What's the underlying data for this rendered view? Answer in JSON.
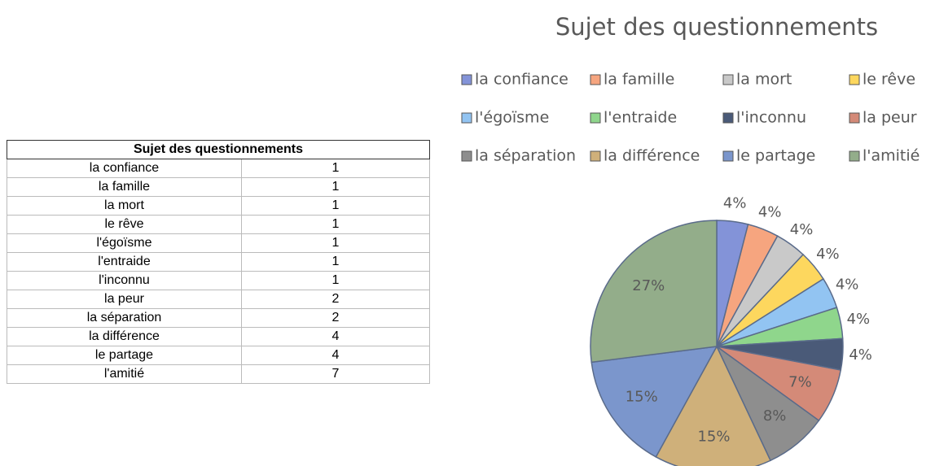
{
  "table": {
    "title": "Sujet des questionnements",
    "rows": [
      [
        "la confiance",
        "1"
      ],
      [
        "la famille",
        "1"
      ],
      [
        "la mort",
        "1"
      ],
      [
        "le rêve",
        "1"
      ],
      [
        "l'égoïsme",
        "1"
      ],
      [
        "l'entraide",
        "1"
      ],
      [
        "l'inconnu",
        "1"
      ],
      [
        "la peur",
        "2"
      ],
      [
        "la séparation",
        "2"
      ],
      [
        "la différence",
        "4"
      ],
      [
        "le partage",
        "4"
      ],
      [
        "l'amitié",
        "7"
      ]
    ]
  },
  "chart_data": {
    "type": "pie",
    "title": "Sujet des questionnements",
    "categories": [
      "la confiance",
      "la famille",
      "la mort",
      "le rêve",
      "l'égoïsme",
      "l'entraide",
      "l'inconnu",
      "la peur",
      "la séparation",
      "la différence",
      "le partage",
      "l'amitié"
    ],
    "values": [
      4,
      4,
      4,
      4,
      4,
      4,
      4,
      7,
      8,
      15,
      15,
      27
    ],
    "value_labels": [
      "4%",
      "4%",
      "4%",
      "4%",
      "4%",
      "4%",
      "4%",
      "7%",
      "8%",
      "15%",
      "15%",
      "27%"
    ],
    "colors": [
      "#8393d8",
      "#f6a57f",
      "#c9c9c9",
      "#fdd75e",
      "#92c4f2",
      "#8fd68c",
      "#4a5a78",
      "#d48a78",
      "#8e8e8e",
      "#cfb07a",
      "#7b96cc",
      "#93ad8a"
    ],
    "legend": "top"
  }
}
